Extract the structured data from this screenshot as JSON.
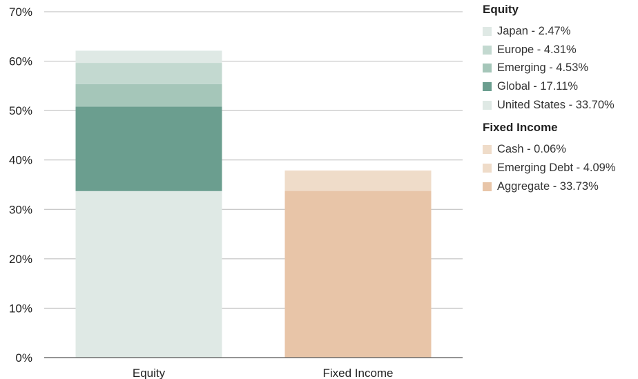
{
  "chart_data": {
    "type": "bar",
    "stacked": true,
    "categories": [
      "Equity",
      "Fixed Income"
    ],
    "ylim": [
      0,
      70
    ],
    "yticks": [
      0,
      10,
      20,
      30,
      40,
      50,
      60,
      70
    ],
    "ytick_labels": [
      "0%",
      "10%",
      "20%",
      "30%",
      "40%",
      "50%",
      "60%",
      "70%"
    ],
    "grid": true,
    "legend_position": "right",
    "stacks": [
      {
        "category": "Equity",
        "group_title": "Equity",
        "segments": [
          {
            "name": "United States",
            "value": 33.7,
            "label": "United States - 33.70%",
            "color": "#dfe9e5"
          },
          {
            "name": "Global",
            "value": 17.11,
            "label": "Global - 17.11%",
            "color": "#6b9e8f"
          },
          {
            "name": "Emerging",
            "value": 4.53,
            "label": "Emerging - 4.53%",
            "color": "#a5c6b9"
          },
          {
            "name": "Europe",
            "value": 4.31,
            "label": "Europe - 4.31%",
            "color": "#c3d9d0"
          },
          {
            "name": "Japan",
            "value": 2.47,
            "label": "Japan - 2.47%",
            "color": "#dfe9e5"
          }
        ]
      },
      {
        "category": "Fixed Income",
        "group_title": "Fixed Income",
        "segments": [
          {
            "name": "Aggregate",
            "value": 33.73,
            "label": "Aggregate - 33.73%",
            "color": "#e8c5a8"
          },
          {
            "name": "Emerging Debt",
            "value": 4.09,
            "label": "Emerging Debt - 4.09%",
            "color": "#efdcc9"
          },
          {
            "name": "Cash",
            "value": 0.06,
            "label": "Cash - 0.06%",
            "color": "#efdcc9"
          }
        ]
      }
    ]
  }
}
